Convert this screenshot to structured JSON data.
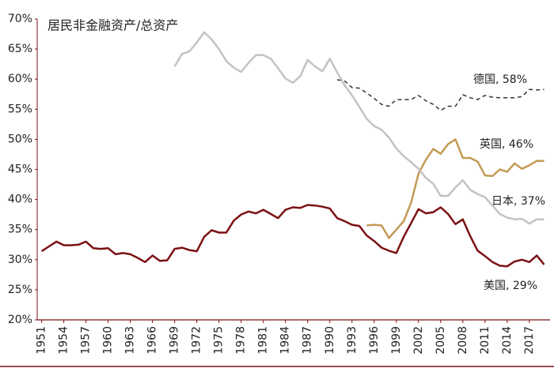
{
  "chart_data": {
    "type": "line",
    "title": "居民非金融资产/总资产",
    "x": [
      1951,
      1952,
      1953,
      1954,
      1955,
      1956,
      1957,
      1958,
      1959,
      1960,
      1961,
      1962,
      1963,
      1964,
      1965,
      1966,
      1967,
      1968,
      1969,
      1970,
      1971,
      1972,
      1973,
      1974,
      1975,
      1976,
      1977,
      1978,
      1979,
      1980,
      1981,
      1982,
      1983,
      1984,
      1985,
      1986,
      1987,
      1988,
      1989,
      1990,
      1991,
      1992,
      1993,
      1994,
      1995,
      1996,
      1997,
      1998,
      1999,
      2000,
      2001,
      2002,
      2003,
      2004,
      2005,
      2006,
      2007,
      2008,
      2009,
      2010,
      2011,
      2012,
      2013,
      2014,
      2015,
      2016,
      2017,
      2018,
      2019
    ],
    "xlim": [
      1950.4,
      2019.8
    ],
    "xticks": [
      1951,
      1954,
      1957,
      1960,
      1963,
      1966,
      1969,
      1972,
      1975,
      1978,
      1981,
      1984,
      1987,
      1990,
      1993,
      1996,
      1999,
      2002,
      2005,
      2008,
      2011,
      2014,
      2017
    ],
    "ylim": [
      20,
      70
    ],
    "yticks": [
      {
        "value": 20,
        "label": "20%"
      },
      {
        "value": 25,
        "label": "25%"
      },
      {
        "value": 30,
        "label": "30%"
      },
      {
        "value": 35,
        "label": "35%"
      },
      {
        "value": 40,
        "label": "40%"
      },
      {
        "value": 45,
        "label": "45%"
      },
      {
        "value": 50,
        "label": "50%"
      },
      {
        "value": 55,
        "label": "55%"
      },
      {
        "value": 60,
        "label": "60%"
      },
      {
        "value": 65,
        "label": "65%"
      },
      {
        "value": 70,
        "label": "70%"
      }
    ],
    "grid": false,
    "series": [
      {
        "name": "德国, 58%",
        "color": "#333333",
        "dashed": true,
        "values": [
          null,
          null,
          null,
          null,
          null,
          null,
          null,
          null,
          null,
          null,
          null,
          null,
          null,
          null,
          null,
          null,
          null,
          null,
          null,
          null,
          null,
          null,
          null,
          null,
          null,
          null,
          null,
          null,
          null,
          null,
          null,
          null,
          null,
          null,
          null,
          null,
          null,
          null,
          null,
          null,
          59.9,
          59.7,
          58.6,
          58.5,
          57.7,
          56.8,
          55.8,
          55.5,
          56.6,
          56.6,
          56.6,
          57.3,
          56.4,
          55.8,
          54.8,
          55.5,
          55.5,
          57.4,
          56.9,
          56.6,
          57.3,
          57.0,
          56.9,
          56.9,
          56.9,
          57.1,
          58.3,
          58.2,
          58.3
        ]
      },
      {
        "name": "英国, 46%",
        "color": "#c49a55",
        "dashed": false,
        "values": [
          null,
          null,
          null,
          null,
          null,
          null,
          null,
          null,
          null,
          null,
          null,
          null,
          null,
          null,
          null,
          null,
          null,
          null,
          null,
          null,
          null,
          null,
          null,
          null,
          null,
          null,
          null,
          null,
          null,
          null,
          null,
          null,
          null,
          null,
          null,
          null,
          null,
          null,
          null,
          null,
          null,
          null,
          null,
          null,
          35.7,
          35.8,
          35.7,
          33.6,
          35.0,
          36.4,
          39.5,
          44.3,
          46.6,
          48.4,
          47.6,
          49.2,
          50.0,
          46.9,
          46.9,
          46.3,
          44.0,
          43.9,
          45.0,
          44.6,
          46.0,
          45.1,
          45.7,
          46.4,
          46.4
        ]
      },
      {
        "name": "日本, 37%",
        "color": "#c3c3c3",
        "dashed": false,
        "values": [
          null,
          null,
          null,
          null,
          null,
          null,
          null,
          null,
          null,
          null,
          null,
          null,
          null,
          null,
          null,
          null,
          null,
          null,
          62.1,
          64.2,
          64.6,
          66.1,
          67.8,
          66.6,
          65.0,
          63.0,
          61.9,
          61.2,
          62.7,
          64.0,
          64.0,
          63.4,
          61.8,
          60.1,
          59.4,
          60.5,
          63.2,
          62.1,
          61.3,
          63.4,
          61.1,
          59.0,
          57.3,
          55.4,
          53.4,
          52.2,
          51.6,
          50.3,
          48.5,
          47.2,
          46.2,
          45.1,
          43.6,
          42.6,
          40.6,
          40.6,
          42.0,
          43.2,
          41.6,
          40.9,
          40.4,
          39.0,
          37.6,
          37.0,
          36.7,
          36.8,
          36.0,
          36.7,
          36.7
        ]
      },
      {
        "name": "美国, 29%",
        "color": "#7b1113",
        "dashed": false,
        "values": [
          31.4,
          32.2,
          33.0,
          32.4,
          32.4,
          32.5,
          33.0,
          31.9,
          31.8,
          31.9,
          30.9,
          31.1,
          30.9,
          30.3,
          29.6,
          30.7,
          29.8,
          29.9,
          31.8,
          32.0,
          31.6,
          31.4,
          33.8,
          34.9,
          34.5,
          34.5,
          36.5,
          37.5,
          38.0,
          37.7,
          38.3,
          37.6,
          36.9,
          38.3,
          38.7,
          38.6,
          39.1,
          39.0,
          38.8,
          38.5,
          36.9,
          36.4,
          35.8,
          35.6,
          34.0,
          33.1,
          32.0,
          31.5,
          31.1,
          33.8,
          36.1,
          38.4,
          37.7,
          37.9,
          38.7,
          37.6,
          35.9,
          36.7,
          33.9,
          31.5,
          30.6,
          29.6,
          29.0,
          28.9,
          29.7,
          30.0,
          29.6,
          30.7,
          29.2
        ]
      }
    ]
  }
}
